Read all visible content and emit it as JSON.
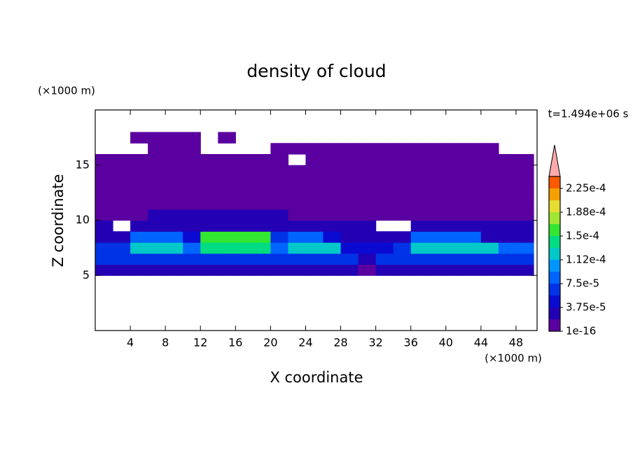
{
  "chart_data": {
    "type": "contour",
    "title": "density of cloud",
    "annotation": "t=1.494e+06 s",
    "x_label": "X coordinate",
    "y_label": "Z coordinate",
    "x_unit": "(×1000 m)",
    "y_unit": "(×1000 m)",
    "xlim": [
      0,
      50.4
    ],
    "ylim": [
      0,
      20
    ],
    "xticks": [
      4,
      8,
      12,
      16,
      20,
      24,
      28,
      32,
      36,
      40,
      44,
      48
    ],
    "yticks": [
      5,
      10,
      15
    ],
    "x": [
      1,
      3,
      5,
      7,
      9,
      11,
      13,
      15,
      17,
      19,
      21,
      23,
      25,
      27,
      29,
      31,
      33,
      35,
      37,
      39,
      41,
      43,
      45,
      47,
      49
    ],
    "y": [
      5.5,
      6.5,
      7.5,
      8.5,
      9.5,
      10.5,
      11.5,
      12.5,
      13.5,
      14.5,
      15.5,
      16.5,
      17.5
    ],
    "values": [
      [
        2e-05,
        2e-05,
        2e-05,
        2e-05,
        2e-05,
        2e-05,
        2e-05,
        2e-05,
        2e-05,
        2e-05,
        2e-05,
        2e-05,
        2e-05,
        2e-05,
        2e-05,
        1e-05,
        2e-05,
        2e-05,
        2e-05,
        2e-05,
        2e-05,
        2e-05,
        2e-05,
        2e-05,
        2e-05
      ],
      [
        6e-05,
        6e-05,
        6e-05,
        6e-05,
        6e-05,
        6e-05,
        6e-05,
        6e-05,
        6e-05,
        6e-05,
        6e-05,
        6e-05,
        6e-05,
        6e-05,
        6e-05,
        3e-05,
        6e-05,
        6e-05,
        6e-05,
        6e-05,
        6e-05,
        6e-05,
        6e-05,
        6e-05,
        6e-05
      ],
      [
        6e-05,
        6e-05,
        0.00012,
        0.00012,
        0.00012,
        8e-05,
        0.00014,
        0.00014,
        0.00014,
        0.00014,
        8e-05,
        0.00012,
        0.00012,
        0.00012,
        4e-05,
        4e-05,
        4e-05,
        6e-05,
        0.00013,
        0.00013,
        0.00013,
        0.00013,
        0.00013,
        8e-05,
        8e-05
      ],
      [
        3e-05,
        3e-05,
        9e-05,
        9e-05,
        9e-05,
        5e-05,
        0.00016,
        0.00016,
        0.00016,
        0.00016,
        6e-05,
        9e-05,
        9e-05,
        5e-05,
        2e-05,
        2e-05,
        2e-05,
        2e-05,
        9e-05,
        9e-05,
        9e-05,
        9e-05,
        3e-05,
        3e-05,
        3e-05
      ],
      [
        2e-05,
        null,
        2.5e-05,
        2.5e-05,
        2.5e-05,
        2.5e-05,
        2.5e-05,
        2.5e-05,
        2.5e-05,
        2.5e-05,
        2.5e-05,
        2.5e-05,
        2.5e-05,
        2.5e-05,
        2.5e-05,
        2.5e-05,
        null,
        null,
        2.5e-05,
        2.5e-05,
        2.5e-05,
        2.5e-05,
        2.5e-05,
        2.5e-05,
        2.5e-05
      ],
      [
        1e-05,
        1e-05,
        1e-05,
        2e-05,
        2e-05,
        2e-05,
        2e-05,
        2e-05,
        2e-05,
        2e-05,
        2e-05,
        1e-05,
        1e-05,
        1e-05,
        1e-05,
        1e-05,
        1e-05,
        1e-05,
        1e-05,
        1e-05,
        1e-05,
        1e-05,
        1e-05,
        1e-05,
        1e-05
      ],
      [
        8e-06,
        8e-06,
        8e-06,
        8e-06,
        8e-06,
        8e-06,
        8e-06,
        8e-06,
        8e-06,
        8e-06,
        8e-06,
        8e-06,
        8e-06,
        8e-06,
        8e-06,
        8e-06,
        8e-06,
        8e-06,
        8e-06,
        8e-06,
        8e-06,
        8e-06,
        8e-06,
        8e-06,
        8e-06
      ],
      [
        5e-06,
        5e-06,
        5e-06,
        5e-06,
        5e-06,
        5e-06,
        5e-06,
        5e-06,
        5e-06,
        5e-06,
        5e-06,
        5e-06,
        5e-06,
        5e-06,
        5e-06,
        5e-06,
        5e-06,
        5e-06,
        5e-06,
        5e-06,
        5e-06,
        5e-06,
        5e-06,
        5e-06,
        5e-06
      ],
      [
        5e-06,
        5e-06,
        5e-06,
        5e-06,
        5e-06,
        5e-06,
        5e-06,
        5e-06,
        5e-06,
        5e-06,
        5e-06,
        5e-06,
        5e-06,
        5e-06,
        5e-06,
        5e-06,
        5e-06,
        5e-06,
        5e-06,
        5e-06,
        5e-06,
        5e-06,
        5e-06,
        5e-06,
        5e-06
      ],
      [
        5e-06,
        5e-06,
        5e-06,
        5e-06,
        5e-06,
        5e-06,
        5e-06,
        5e-06,
        5e-06,
        5e-06,
        5e-06,
        5e-06,
        5e-06,
        5e-06,
        5e-06,
        5e-06,
        5e-06,
        5e-06,
        5e-06,
        5e-06,
        5e-06,
        5e-06,
        5e-06,
        5e-06,
        5e-06
      ],
      [
        5e-06,
        5e-06,
        5e-06,
        5e-06,
        5e-06,
        5e-06,
        5e-06,
        5e-06,
        5e-06,
        5e-06,
        5e-06,
        null,
        5e-06,
        5e-06,
        5e-06,
        5e-06,
        5e-06,
        5e-06,
        5e-06,
        5e-06,
        5e-06,
        5e-06,
        5e-06,
        5e-06,
        5e-06
      ],
      [
        null,
        null,
        null,
        5e-06,
        5e-06,
        5e-06,
        null,
        null,
        null,
        null,
        5e-06,
        5e-06,
        5e-06,
        5e-06,
        5e-06,
        5e-06,
        5e-06,
        5e-06,
        5e-06,
        5e-06,
        5e-06,
        5e-06,
        5e-06,
        null,
        null
      ],
      [
        null,
        null,
        5e-06,
        5e-06,
        5e-06,
        5e-06,
        null,
        5e-06,
        null,
        null,
        null,
        null,
        null,
        null,
        null,
        null,
        null,
        null,
        null,
        null,
        null,
        null,
        null,
        null,
        null
      ]
    ],
    "colorbar": {
      "levels": [
        1e-16,
        1.875e-05,
        3.75e-05,
        5.625e-05,
        7.5e-05,
        9.375e-05,
        0.0001125,
        0.00013125,
        0.00015,
        0.00016875,
        0.0001875,
        0.00020625,
        0.000225,
        0.00024375
      ],
      "colors": [
        "#5a00a0",
        "#2300b4",
        "#0a0ad2",
        "#0032e6",
        "#0064ff",
        "#0096ff",
        "#00c8c8",
        "#00dc82",
        "#32e632",
        "#a0e632",
        "#e6dc32",
        "#f5a000",
        "#ff5a00",
        "#f01e1e"
      ],
      "extend_color": "#ffaaaa",
      "ticks": [
        1e-16,
        {
          "value": 3.75e-05,
          "label": "3.75e-5"
        },
        {
          "value": 7.5e-05,
          "label": "7.5e-5"
        },
        {
          "value": 0.0001125,
          "label": "1.12e-4"
        },
        {
          "value": 0.00015,
          "label": "1.5e-4"
        },
        {
          "value": 0.0001875,
          "label": "1.88e-4"
        },
        {
          "value": 0.000225,
          "label": "2.25e-4"
        }
      ]
    }
  }
}
